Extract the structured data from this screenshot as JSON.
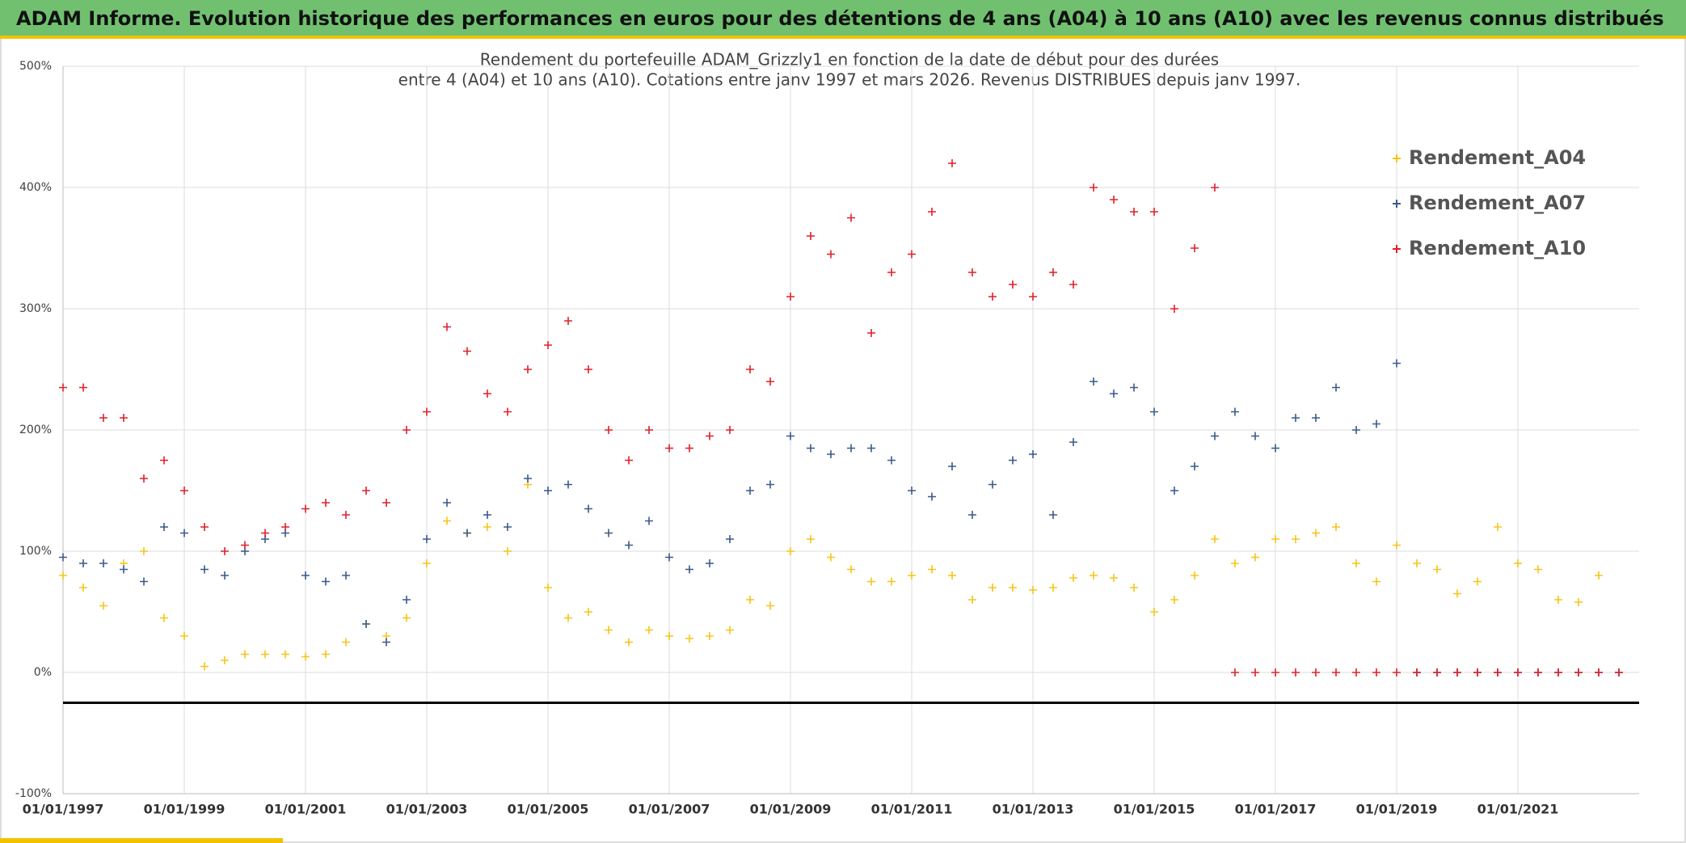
{
  "header": {
    "title": "ADAM Informe. Evolution historique des performances en euros pour des détentions de 4 ans (A04) à 10 ans (A10) avec les revenus connus distribués"
  },
  "chart_data": {
    "type": "scatter",
    "title": "Rendement du portefeuille ADAM_Grizzly1 en fonction de la date de début pour des durées",
    "subtitle": "entre 4 (A04) et 10 ans (A10). Cotations entre janv 1997 et mars 2026. Revenus DISTRIBUES depuis janv 1997.",
    "x": [
      "1997-01-01",
      "1997-05-01",
      "1997-09-01",
      "1998-01-01",
      "1998-05-01",
      "1998-09-01",
      "1999-01-01",
      "1999-05-01",
      "1999-09-01",
      "2000-01-01",
      "2000-05-01",
      "2000-09-01",
      "2001-01-01",
      "2001-05-01",
      "2001-09-01",
      "2002-01-01",
      "2002-05-01",
      "2002-09-01",
      "2003-01-01",
      "2003-05-01",
      "2003-09-01",
      "2004-01-01",
      "2004-05-01",
      "2004-09-01",
      "2005-01-01",
      "2005-05-01",
      "2005-09-01",
      "2006-01-01",
      "2006-05-01",
      "2006-09-01",
      "2007-01-01",
      "2007-05-01",
      "2007-09-01",
      "2008-01-01",
      "2008-05-01",
      "2008-09-01",
      "2009-01-01",
      "2009-05-01",
      "2009-09-01",
      "2010-01-01",
      "2010-05-01",
      "2010-09-01",
      "2011-01-01",
      "2011-05-01",
      "2011-09-01",
      "2012-01-01",
      "2012-05-01",
      "2012-09-01",
      "2013-01-01",
      "2013-05-01",
      "2013-09-01",
      "2014-01-01",
      "2014-05-01",
      "2014-09-01",
      "2015-01-01",
      "2015-05-01",
      "2015-09-01",
      "2016-01-01",
      "2016-05-01",
      "2016-09-01",
      "2017-01-01",
      "2017-05-01",
      "2017-09-01",
      "2018-01-01",
      "2018-05-01",
      "2018-09-01",
      "2019-01-01",
      "2019-05-01",
      "2019-09-01",
      "2020-01-01",
      "2020-05-01",
      "2020-09-01",
      "2021-01-01",
      "2021-05-01",
      "2021-09-01",
      "2022-01-01",
      "2022-05-01",
      "2022-09-01"
    ],
    "series": [
      {
        "name": "Rendement_A04",
        "color": "#f5c518",
        "values": [
          80,
          70,
          55,
          90,
          100,
          45,
          30,
          5,
          10,
          15,
          15,
          15,
          13,
          15,
          25,
          40,
          30,
          45,
          90,
          125,
          115,
          120,
          100,
          155,
          70,
          45,
          50,
          35,
          25,
          35,
          30,
          28,
          30,
          35,
          60,
          55,
          100,
          110,
          95,
          85,
          75,
          75,
          80,
          85,
          80,
          60,
          70,
          70,
          68,
          70,
          78,
          80,
          78,
          70,
          50,
          60,
          80,
          110,
          90,
          95,
          110,
          110,
          115,
          120,
          90,
          75,
          105,
          90,
          85,
          65,
          75,
          120,
          90,
          85,
          60,
          58,
          80,
          null
        ]
      },
      {
        "name": "Rendement_A07",
        "color": "#3a5a8c",
        "values": [
          95,
          90,
          90,
          85,
          75,
          120,
          115,
          85,
          80,
          100,
          110,
          115,
          80,
          75,
          80,
          40,
          25,
          60,
          110,
          140,
          115,
          130,
          120,
          160,
          150,
          155,
          135,
          115,
          105,
          125,
          95,
          85,
          90,
          110,
          150,
          155,
          195,
          185,
          180,
          185,
          185,
          175,
          150,
          145,
          170,
          130,
          155,
          175,
          180,
          130,
          190,
          240,
          230,
          235,
          215,
          150,
          170,
          195,
          215,
          195,
          185,
          210,
          210,
          235,
          200,
          205,
          255,
          0,
          0,
          0,
          0,
          0,
          0,
          0,
          0,
          0,
          0,
          0
        ]
      },
      {
        "name": "Rendement_A10",
        "color": "#e0202a",
        "values": [
          235,
          235,
          210,
          210,
          160,
          175,
          150,
          120,
          100,
          105,
          115,
          120,
          135,
          140,
          130,
          150,
          140,
          200,
          215,
          285,
          265,
          230,
          215,
          250,
          270,
          290,
          250,
          200,
          175,
          200,
          185,
          185,
          195,
          200,
          250,
          240,
          310,
          360,
          345,
          375,
          280,
          330,
          345,
          380,
          420,
          330,
          310,
          320,
          310,
          330,
          320,
          400,
          390,
          380,
          380,
          300,
          350,
          400,
          0,
          0,
          0,
          0,
          0,
          0,
          0,
          0,
          0,
          0,
          0,
          0,
          0,
          0,
          0,
          0,
          0,
          0,
          0,
          0
        ]
      }
    ],
    "hline": -25,
    "xlim": [
      "1997-01-01",
      "2023-01-01"
    ],
    "xticks": [
      {
        "value": "1997-01-01",
        "label": "01/01/1997"
      },
      {
        "value": "1999-01-01",
        "label": "01/01/1999"
      },
      {
        "value": "2001-01-01",
        "label": "01/01/2001"
      },
      {
        "value": "2003-01-01",
        "label": "01/01/2003"
      },
      {
        "value": "2005-01-01",
        "label": "01/01/2005"
      },
      {
        "value": "2007-01-01",
        "label": "01/01/2007"
      },
      {
        "value": "2009-01-01",
        "label": "01/01/2009"
      },
      {
        "value": "2011-01-01",
        "label": "01/01/2011"
      },
      {
        "value": "2013-01-01",
        "label": "01/01/2013"
      },
      {
        "value": "2015-01-01",
        "label": "01/01/2015"
      },
      {
        "value": "2017-01-01",
        "label": "01/01/2017"
      },
      {
        "value": "2019-01-01",
        "label": "01/01/2019"
      },
      {
        "value": "2021-01-01",
        "label": "01/01/2021"
      }
    ],
    "ylim": [
      -100,
      500
    ],
    "yticks": [
      {
        "value": -100,
        "label": "-100%"
      },
      {
        "value": 0,
        "label": "0%"
      },
      {
        "value": 100,
        "label": "100%"
      },
      {
        "value": 200,
        "label": "200%"
      },
      {
        "value": 300,
        "label": "300%"
      },
      {
        "value": 400,
        "label": "400%"
      },
      {
        "value": 500,
        "label": "500%"
      }
    ],
    "grid": true,
    "legend": "upper right"
  }
}
